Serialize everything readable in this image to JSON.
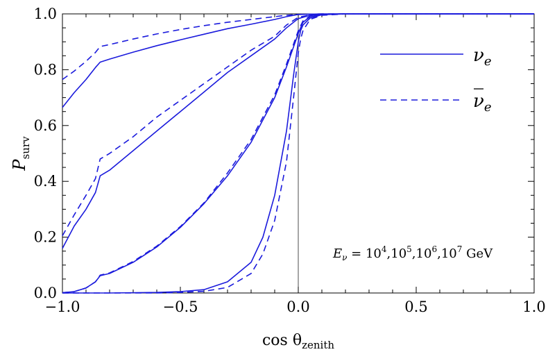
{
  "chart_data": {
    "type": "line",
    "title": "",
    "xlabel": "cos θ",
    "xlabel_sub": "zenith",
    "ylabel": "P",
    "ylabel_sub": "surv",
    "xlim": [
      -1.0,
      1.0
    ],
    "ylim": [
      0.0,
      1.0
    ],
    "xticks": [
      -1.0,
      -0.5,
      0.0,
      0.5,
      1.0
    ],
    "xtick_labels": [
      "−1.0",
      "−0.5",
      "0.0",
      "0.5",
      "1.0"
    ],
    "yticks": [
      0.0,
      0.2,
      0.4,
      0.6,
      0.8,
      1.0
    ],
    "ytick_labels": [
      "0.0",
      "0.2",
      "0.4",
      "0.6",
      "0.8",
      "1.0"
    ],
    "grid": false,
    "legend_position": "top-right",
    "legend": [
      {
        "label": "ν",
        "sub": "e",
        "bar": false,
        "style": "solid"
      },
      {
        "label": "ν",
        "sub": "e",
        "bar": true,
        "style": "dashed"
      }
    ],
    "annotation": {
      "var": "E",
      "var_sub": "ν",
      "text": " = 10",
      "pieces": [
        {
          "base": "10",
          "exp": "4"
        },
        {
          "base": "10",
          "exp": "5"
        },
        {
          "base": "10",
          "exp": "6"
        },
        {
          "base": "10",
          "exp": "7"
        }
      ],
      "unit": "GeV"
    },
    "color": "#1a1adc",
    "series": [
      {
        "name": "ν_e, E = 10^4 GeV",
        "style": "solid",
        "x": [
          -1.0,
          -0.95,
          -0.9,
          -0.86,
          -0.84,
          -0.8,
          -0.7,
          -0.6,
          -0.5,
          -0.4,
          -0.3,
          -0.2,
          -0.1,
          -0.05,
          0.0,
          0.05,
          0.1,
          0.2,
          0.5,
          1.0
        ],
        "y": [
          0.665,
          0.718,
          0.765,
          0.808,
          0.827,
          0.838,
          0.863,
          0.886,
          0.907,
          0.927,
          0.947,
          0.963,
          0.98,
          0.99,
          0.998,
          0.999,
          1.0,
          1.0,
          1.0,
          1.0
        ]
      },
      {
        "name": "anti-ν_e, E = 10^4 GeV",
        "style": "dashed",
        "x": [
          -1.0,
          -0.95,
          -0.9,
          -0.86,
          -0.84,
          -0.8,
          -0.7,
          -0.6,
          -0.5,
          -0.4,
          -0.3,
          -0.2,
          -0.1,
          -0.05,
          0.0,
          0.05,
          0.1,
          0.2,
          0.5,
          1.0
        ],
        "y": [
          0.765,
          0.795,
          0.83,
          0.862,
          0.883,
          0.89,
          0.91,
          0.928,
          0.944,
          0.958,
          0.97,
          0.98,
          0.99,
          0.995,
          0.998,
          0.999,
          1.0,
          1.0,
          1.0,
          1.0
        ]
      },
      {
        "name": "ν_e, E = 10^5 GeV",
        "style": "solid",
        "x": [
          -1.0,
          -0.95,
          -0.9,
          -0.86,
          -0.84,
          -0.8,
          -0.7,
          -0.6,
          -0.5,
          -0.4,
          -0.3,
          -0.2,
          -0.1,
          -0.05,
          0.0,
          0.05,
          0.1,
          0.2,
          0.5,
          1.0
        ],
        "y": [
          0.16,
          0.24,
          0.3,
          0.36,
          0.42,
          0.44,
          0.51,
          0.58,
          0.65,
          0.72,
          0.79,
          0.85,
          0.91,
          0.95,
          0.983,
          0.995,
          0.999,
          1.0,
          1.0,
          1.0
        ]
      },
      {
        "name": "anti-ν_e, E = 10^5 GeV",
        "style": "dashed",
        "x": [
          -1.0,
          -0.95,
          -0.9,
          -0.86,
          -0.84,
          -0.8,
          -0.7,
          -0.6,
          -0.5,
          -0.4,
          -0.3,
          -0.2,
          -0.1,
          -0.05,
          0.0,
          0.05,
          0.1,
          0.2,
          0.5,
          1.0
        ],
        "y": [
          0.205,
          0.28,
          0.35,
          0.41,
          0.48,
          0.5,
          0.56,
          0.63,
          0.69,
          0.75,
          0.81,
          0.87,
          0.92,
          0.96,
          0.988,
          0.996,
          0.999,
          1.0,
          1.0,
          1.0
        ]
      },
      {
        "name": "ν_e, E = 10^6 GeV",
        "style": "solid",
        "x": [
          -1.0,
          -0.95,
          -0.9,
          -0.86,
          -0.84,
          -0.8,
          -0.7,
          -0.6,
          -0.5,
          -0.4,
          -0.3,
          -0.2,
          -0.1,
          -0.05,
          0.0,
          0.02,
          0.05,
          0.1,
          0.2,
          0.5,
          1.0
        ],
        "y": [
          0.001,
          0.005,
          0.018,
          0.04,
          0.062,
          0.07,
          0.11,
          0.165,
          0.235,
          0.32,
          0.42,
          0.54,
          0.7,
          0.81,
          0.93,
          0.97,
          0.99,
          0.998,
          1.0,
          1.0,
          1.0
        ]
      },
      {
        "name": "anti-ν_e, E = 10^6 GeV",
        "style": "dashed",
        "x": [
          -1.0,
          -0.95,
          -0.9,
          -0.86,
          -0.84,
          -0.8,
          -0.7,
          -0.6,
          -0.5,
          -0.4,
          -0.3,
          -0.2,
          -0.1,
          -0.05,
          0.0,
          0.02,
          0.05,
          0.1,
          0.2,
          0.5,
          1.0
        ],
        "y": [
          0.001,
          0.005,
          0.018,
          0.04,
          0.064,
          0.072,
          0.113,
          0.168,
          0.238,
          0.323,
          0.43,
          0.55,
          0.71,
          0.82,
          0.94,
          0.975,
          0.992,
          0.998,
          1.0,
          1.0,
          1.0
        ]
      },
      {
        "name": "ν_e, E = 10^7 GeV",
        "style": "solid",
        "x": [
          -1.0,
          -0.8,
          -0.6,
          -0.5,
          -0.4,
          -0.3,
          -0.2,
          -0.15,
          -0.1,
          -0.05,
          -0.02,
          0.0,
          0.01,
          0.02,
          0.05,
          0.1,
          0.2,
          0.5,
          1.0
        ],
        "y": [
          0.0,
          0.0,
          0.002,
          0.005,
          0.012,
          0.04,
          0.11,
          0.2,
          0.35,
          0.58,
          0.78,
          0.9,
          0.94,
          0.96,
          0.985,
          0.997,
          1.0,
          1.0,
          1.0
        ]
      },
      {
        "name": "anti-ν_e, E = 10^7 GeV",
        "style": "dashed",
        "x": [
          -1.0,
          -0.8,
          -0.6,
          -0.5,
          -0.4,
          -0.3,
          -0.2,
          -0.15,
          -0.1,
          -0.05,
          -0.02,
          0.0,
          0.01,
          0.02,
          0.05,
          0.1,
          0.2,
          0.5,
          1.0
        ],
        "y": [
          0.0,
          0.0,
          0.0,
          0.002,
          0.006,
          0.02,
          0.07,
          0.14,
          0.26,
          0.47,
          0.7,
          0.86,
          0.91,
          0.94,
          0.98,
          0.995,
          1.0,
          1.0,
          1.0
        ]
      }
    ]
  }
}
